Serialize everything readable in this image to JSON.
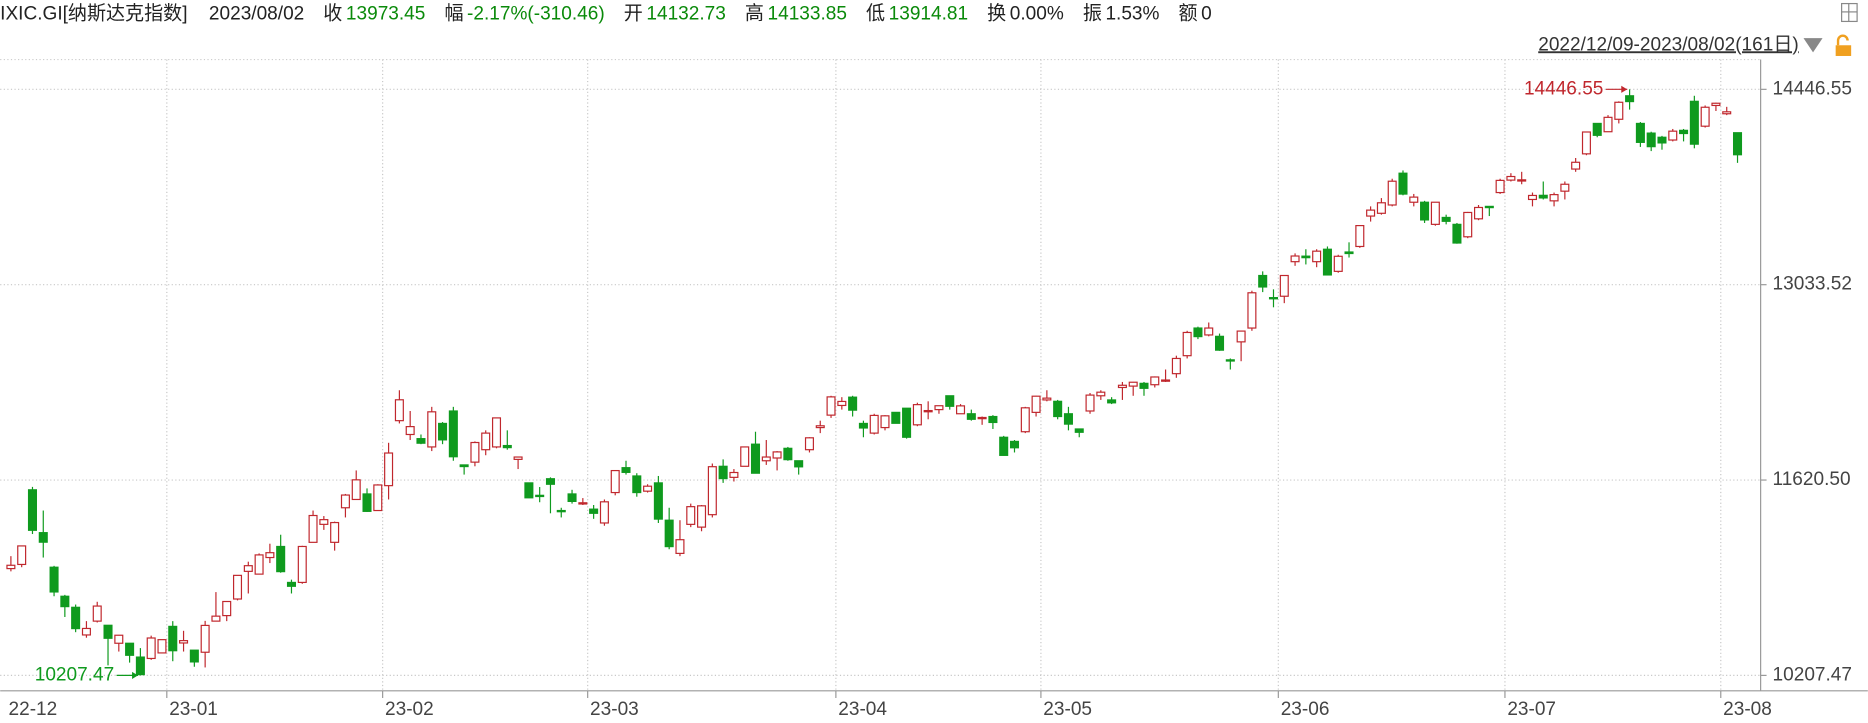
{
  "header": {
    "code": "IXIC.GI[纳斯达克指数]",
    "date": "2023/08/02",
    "fields": [
      {
        "label": "收",
        "value": "13973.45",
        "color": "#0a8a0a"
      },
      {
        "label": "幅",
        "value": "-2.17%(-310.46)",
        "color": "#0a8a0a"
      },
      {
        "label": "开",
        "value": "14132.73",
        "color": "#0a8a0a"
      },
      {
        "label": "高",
        "value": "14133.85",
        "color": "#0a8a0a"
      },
      {
        "label": "低",
        "value": "13914.81",
        "color": "#0a8a0a"
      },
      {
        "label": "换",
        "value": "0.00%",
        "color": "#222222"
      },
      {
        "label": "振",
        "value": "1.53%",
        "color": "#222222"
      },
      {
        "label": "额",
        "value": "0",
        "color": "#222222"
      }
    ]
  },
  "chart_data": {
    "type": "candlestick",
    "range_label": "2022/12/09-2023/08/02(161日)",
    "categories": [
      "22-12",
      null,
      null,
      null,
      null,
      null,
      null,
      null,
      null,
      null,
      null,
      null,
      null,
      null,
      null,
      "23-01",
      null,
      null,
      null,
      null,
      null,
      null,
      null,
      null,
      null,
      null,
      null,
      null,
      null,
      null,
      null,
      null,
      null,
      null,
      null,
      "23-02",
      null,
      null,
      null,
      null,
      null,
      null,
      null,
      null,
      null,
      null,
      null,
      null,
      null,
      null,
      null,
      null,
      null,
      null,
      "23-03",
      null,
      null,
      null,
      null,
      null,
      null,
      null,
      null,
      null,
      null,
      null,
      null,
      null,
      null,
      null,
      null,
      null,
      null,
      null,
      null,
      null,
      null,
      "23-04",
      null,
      null,
      null,
      null,
      null,
      null,
      null,
      null,
      null,
      null,
      null,
      null,
      null,
      null,
      null,
      null,
      null,
      null,
      "23-05",
      null,
      null,
      null,
      null,
      null,
      null,
      null,
      null,
      null,
      null,
      null,
      null,
      null,
      null,
      null,
      null,
      null,
      null,
      null,
      null,
      null,
      "23-06",
      null,
      null,
      null,
      null,
      null,
      null,
      null,
      null,
      null,
      null,
      null,
      null,
      null,
      null,
      null,
      null,
      null,
      null,
      null,
      null,
      "23-07",
      null,
      null,
      null,
      null,
      null,
      null,
      null,
      null,
      null,
      null,
      null,
      null,
      null,
      null,
      null,
      null,
      null,
      null,
      null,
      "23-08",
      null
    ],
    "open": [
      10980,
      11010,
      11550,
      11240,
      10990,
      10780,
      10700,
      10500,
      10600,
      10570,
      10440,
      10440,
      10340,
      10330,
      10370,
      10562,
      10442,
      10390,
      10375,
      10600,
      10640,
      10760,
      10960,
      10940,
      11060,
      11140,
      10880,
      10880,
      11170,
      11300,
      11170,
      11420,
      11480,
      11520,
      11400,
      11580,
      12050,
      11950,
      11920,
      11860,
      12030,
      12120,
      11730,
      11750,
      11840,
      11860,
      11870,
      11770,
      11600,
      11510,
      11630,
      11400,
      11520,
      11450,
      11410,
      11310,
      11530,
      11710,
      11650,
      11540,
      11600,
      11330,
      11090,
      11300,
      11280,
      11370,
      11720,
      11640,
      11720,
      11880,
      11760,
      11780,
      11850,
      11760,
      11840,
      12000,
      12090,
      12160,
      12220,
      12030,
      11960,
      12000,
      12110,
      12140,
      12020,
      12120,
      12130,
      12230,
      12100,
      12100,
      12070,
      12080,
      11930,
      11900,
      11970,
      12110,
      12200,
      12190,
      12100,
      11990,
      12120,
      12230,
      12200,
      12290,
      12300,
      12320,
      12310,
      12340,
      12390,
      12520,
      12720,
      12670,
      12660,
      12490,
      12620,
      12720,
      13100,
      12940,
      12950,
      13200,
      13240,
      13200,
      13290,
      13130,
      13270,
      13310,
      13530,
      13550,
      13610,
      13840,
      13630,
      13630,
      13470,
      13520,
      13470,
      13380,
      13510,
      13600,
      13700,
      13790,
      13790,
      13650,
      13680,
      13640,
      13710,
      13870,
      13980,
      14200,
      14140,
      14230,
      14400,
      14200,
      14130,
      14100,
      14080,
      14150,
      14360,
      14180,
      14330,
      14270,
      14132.73
    ],
    "high": [
      11070,
      11144,
      11571,
      11400,
      11000,
      10790,
      10720,
      10600,
      10740,
      10570,
      10500,
      10440,
      10405,
      10495,
      10467,
      10600,
      10530,
      10390,
      10602,
      10810,
      10745,
      10931,
      11030,
      11090,
      11160,
      11225,
      10900,
      11145,
      11400,
      11360,
      11320,
      11520,
      11690,
      11560,
      11590,
      11890,
      12270,
      12120,
      11950,
      12150,
      12040,
      12150,
      11730,
      11900,
      11980,
      12070,
      11980,
      11790,
      11600,
      11570,
      11640,
      11420,
      11550,
      11490,
      11440,
      11480,
      11690,
      11760,
      11670,
      11590,
      11650,
      11420,
      11330,
      11450,
      11440,
      11740,
      11770,
      11700,
      11860,
      11970,
      11910,
      11830,
      11860,
      11760,
      11930,
      12050,
      12230,
      12220,
      12230,
      12050,
      12100,
      12090,
      12110,
      12140,
      12180,
      12190,
      12160,
      12230,
      12170,
      12130,
      12080,
      12090,
      11940,
      11910,
      12150,
      12230,
      12270,
      12200,
      12150,
      11990,
      12250,
      12270,
      12220,
      12330,
      12330,
      12330,
      12370,
      12420,
      12520,
      12700,
      12730,
      12760,
      12680,
      12500,
      12700,
      12990,
      13130,
      13000,
      13100,
      13260,
      13290,
      13290,
      13310,
      13250,
      13340,
      13460,
      13600,
      13660,
      13800,
      13860,
      13690,
      13640,
      13630,
      13540,
      13480,
      13560,
      13610,
      13600,
      13800,
      13840,
      13850,
      13700,
      13780,
      13700,
      13780,
      13950,
      14140,
      14200,
      14260,
      14360,
      14446.55,
      14210,
      14140,
      14110,
      14160,
      14160,
      14400,
      14330,
      14350,
      14320,
      14133.85
    ],
    "low": [
      10960,
      10990,
      11230,
      11060,
      10780,
      10630,
      10520,
      10480,
      10590,
      10280,
      10380,
      10300,
      10207.47,
      10320,
      10370,
      10310,
      10380,
      10270,
      10265,
      10600,
      10600,
      10750,
      10800,
      10940,
      11020,
      10950,
      10800,
      10870,
      11170,
      11260,
      11110,
      11350,
      11480,
      11390,
      11400,
      11480,
      12030,
      11910,
      11880,
      11830,
      11880,
      11760,
      11660,
      11720,
      11800,
      11850,
      11840,
      11700,
      11490,
      11460,
      11380,
      11350,
      11450,
      11440,
      11340,
      11290,
      11510,
      11660,
      11500,
      11530,
      11310,
      11120,
      11070,
      11280,
      11250,
      11350,
      11600,
      11610,
      11720,
      11670,
      11730,
      11690,
      11760,
      11660,
      11820,
      11960,
      12070,
      12130,
      12080,
      11930,
      11950,
      11980,
      12030,
      11920,
      12010,
      12060,
      12100,
      12130,
      12100,
      12050,
      12020,
      11990,
      11797,
      11820,
      11960,
      12080,
      12190,
      12060,
      11980,
      11930,
      12100,
      12200,
      12170,
      12200,
      12230,
      12230,
      12290,
      12330,
      12360,
      12500,
      12640,
      12660,
      12555,
      12420,
      12480,
      12700,
      12980,
      12870,
      12900,
      13170,
      13180,
      13160,
      13100,
      13120,
      13230,
      13300,
      13490,
      13540,
      13600,
      13680,
      13600,
      13480,
      13460,
      13470,
      13330,
      13370,
      13500,
      13530,
      13690,
      13780,
      13760,
      13600,
      13650,
      13600,
      13650,
      13850,
      13970,
      14100,
      14140,
      14200,
      14300,
      14030,
      14000,
      14010,
      14070,
      14070,
      14020,
      14170,
      14290,
      14260,
      13914.81
    ],
    "close": [
      11004,
      11144,
      11257,
      11171,
      10811,
      10705,
      10546,
      10547,
      10709,
      10476,
      10498,
      10353,
      10213,
      10478,
      10466,
      10386,
      10459,
      10305,
      10569,
      10636,
      10742,
      10931,
      11001,
      11079,
      11095,
      10958,
      10852,
      11140,
      11364,
      11334,
      11313,
      11512,
      11622,
      11394,
      11585,
      11816,
      12201,
      12007,
      11887,
      12114,
      11911,
      11789,
      11718,
      11892,
      11960,
      12070,
      11855,
      11787,
      11492,
      11507,
      11590,
      11395,
      11466,
      11456,
      11380,
      11463,
      11689,
      11676,
      11530,
      11576,
      11338,
      11139,
      11189,
      11428,
      11434,
      11717,
      11631,
      11675,
      11860,
      11670,
      11787,
      11824,
      11768,
      11716,
      11926,
      12013,
      12222,
      12189,
      12126,
      11997,
      12088,
      12085,
      12031,
      11930,
      12166,
      12123,
      12158,
      12154,
      12157,
      12060,
      12073,
      12037,
      11799,
      11854,
      12143,
      12227,
      12213,
      12080,
      12025,
      11966,
      12235,
      12256,
      12179,
      12306,
      12328,
      12284,
      12366,
      12344,
      12500,
      12688,
      12658,
      12720,
      12560,
      12484,
      12698,
      12975,
      13017,
      12935,
      13100,
      13241,
      13229,
      13276,
      13104,
      13239,
      13259,
      13461,
      13573,
      13626,
      13782,
      13689,
      13667,
      13502,
      13630,
      13492,
      13335,
      13556,
      13592,
      13591,
      13788,
      13816,
      13792,
      13679,
      13661,
      13685,
      13760,
      13919,
      14138,
      14114,
      14244,
      14353,
      14358,
      14063,
      14032,
      14059,
      14144,
      14127,
      14050,
      14317,
      14346,
      14284,
      13973.45
    ],
    "up_color": "#c0272d",
    "down_color": "#0f9a1e",
    "ylim": [
      10113,
      14662
    ],
    "yticks": [
      14446.55,
      13033.52,
      {
        "value": 11620.5,
        "label": "11620.50"
      },
      10207.47
    ],
    "grid": true,
    "annotations": [
      {
        "value": 14446.55,
        "label": "14446.55",
        "color": "#c0272d"
      },
      {
        "value": 10207.47,
        "label": "10207.47",
        "color": "#0f9a1e"
      }
    ]
  }
}
